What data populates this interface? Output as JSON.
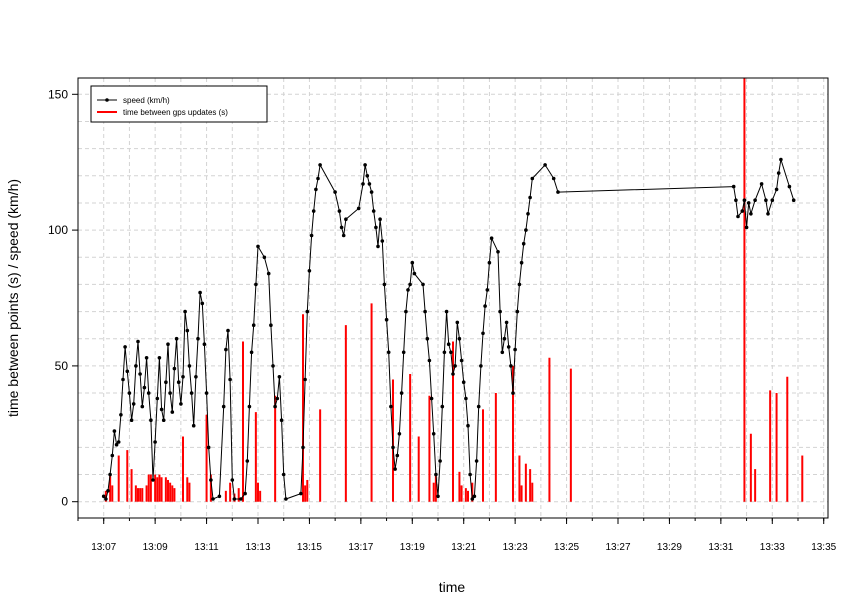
{
  "chart_data": {
    "type": "line",
    "title": "",
    "xlabel": "time",
    "ylabel": "time between points (s) / speed (km/h)",
    "xlim": [
      "13:06:00",
      "13:35:10"
    ],
    "ylim": [
      -6,
      156
    ],
    "x_ticks": [
      "13:07",
      "13:09",
      "13:11",
      "13:13",
      "13:15",
      "13:17",
      "13:19",
      "13:21",
      "13:23",
      "13:25",
      "13:27",
      "13:29",
      "13:31",
      "13:33",
      "13:35"
    ],
    "y_ticks": [
      0,
      50,
      100,
      150
    ],
    "grid": true,
    "legend_position": "top-left",
    "series": [
      {
        "name": "speed (km/h)",
        "color": "#000000",
        "style": "line-with-points",
        "points": [
          [
            "13:07:00",
            2
          ],
          [
            "13:07:05",
            1
          ],
          [
            "13:07:10",
            4
          ],
          [
            "13:07:15",
            10
          ],
          [
            "13:07:20",
            17
          ],
          [
            "13:07:25",
            26
          ],
          [
            "13:07:30",
            21
          ],
          [
            "13:07:35",
            22
          ],
          [
            "13:07:40",
            32
          ],
          [
            "13:07:45",
            45
          ],
          [
            "13:07:50",
            57
          ],
          [
            "13:07:55",
            48
          ],
          [
            "13:08:00",
            40
          ],
          [
            "13:08:05",
            30
          ],
          [
            "13:08:10",
            36
          ],
          [
            "13:08:15",
            50
          ],
          [
            "13:08:20",
            59
          ],
          [
            "13:08:25",
            47
          ],
          [
            "13:08:30",
            35
          ],
          [
            "13:08:35",
            42
          ],
          [
            "13:08:40",
            53
          ],
          [
            "13:08:45",
            40
          ],
          [
            "13:08:50",
            30
          ],
          [
            "13:08:55",
            8
          ],
          [
            "13:09:00",
            22
          ],
          [
            "13:09:05",
            38
          ],
          [
            "13:09:10",
            53
          ],
          [
            "13:09:15",
            34
          ],
          [
            "13:09:20",
            30
          ],
          [
            "13:09:25",
            44
          ],
          [
            "13:09:30",
            58
          ],
          [
            "13:09:35",
            40
          ],
          [
            "13:09:40",
            33
          ],
          [
            "13:09:45",
            49
          ],
          [
            "13:09:50",
            60
          ],
          [
            "13:09:55",
            44
          ],
          [
            "13:10:00",
            36
          ],
          [
            "13:10:05",
            46
          ],
          [
            "13:10:10",
            70
          ],
          [
            "13:10:15",
            63
          ],
          [
            "13:10:20",
            50
          ],
          [
            "13:10:25",
            40
          ],
          [
            "13:10:30",
            28
          ],
          [
            "13:10:35",
            46
          ],
          [
            "13:10:40",
            60
          ],
          [
            "13:10:45",
            77
          ],
          [
            "13:10:50",
            73
          ],
          [
            "13:10:55",
            58
          ],
          [
            "13:11:00",
            40
          ],
          [
            "13:11:05",
            20
          ],
          [
            "13:11:10",
            8
          ],
          [
            "13:11:15",
            1
          ],
          [
            "13:11:30",
            2
          ],
          [
            "13:11:40",
            35
          ],
          [
            "13:11:45",
            56
          ],
          [
            "13:11:50",
            63
          ],
          [
            "13:11:55",
            45
          ],
          [
            "13:12:00",
            8
          ],
          [
            "13:12:05",
            1
          ],
          [
            "13:12:20",
            1
          ],
          [
            "13:12:30",
            3
          ],
          [
            "13:12:35",
            15
          ],
          [
            "13:12:40",
            35
          ],
          [
            "13:12:45",
            55
          ],
          [
            "13:12:50",
            65
          ],
          [
            "13:12:55",
            80
          ],
          [
            "13:13:00",
            94
          ],
          [
            "13:13:15",
            90
          ],
          [
            "13:13:25",
            84
          ],
          [
            "13:13:30",
            65
          ],
          [
            "13:13:35",
            50
          ],
          [
            "13:13:40",
            35
          ],
          [
            "13:13:45",
            38
          ],
          [
            "13:13:50",
            46
          ],
          [
            "13:13:55",
            30
          ],
          [
            "13:14:00",
            10
          ],
          [
            "13:14:05",
            1
          ],
          [
            "13:14:40",
            3
          ],
          [
            "13:14:45",
            20
          ],
          [
            "13:14:50",
            45
          ],
          [
            "13:14:55",
            70
          ],
          [
            "13:15:00",
            85
          ],
          [
            "13:15:05",
            98
          ],
          [
            "13:15:10",
            107
          ],
          [
            "13:15:15",
            115
          ],
          [
            "13:15:20",
            119
          ],
          [
            "13:15:25",
            124
          ],
          [
            "13:16:00",
            114
          ],
          [
            "13:16:10",
            107
          ],
          [
            "13:16:15",
            101
          ],
          [
            "13:16:20",
            98
          ],
          [
            "13:16:25",
            104
          ],
          [
            "13:16:55",
            108
          ],
          [
            "13:17:05",
            117
          ],
          [
            "13:17:10",
            124
          ],
          [
            "13:17:15",
            120
          ],
          [
            "13:17:20",
            117
          ],
          [
            "13:17:25",
            114
          ],
          [
            "13:17:30",
            107
          ],
          [
            "13:17:35",
            101
          ],
          [
            "13:17:40",
            94
          ],
          [
            "13:17:45",
            104
          ],
          [
            "13:17:50",
            96
          ],
          [
            "13:17:55",
            80
          ],
          [
            "13:18:00",
            67
          ],
          [
            "13:18:05",
            55
          ],
          [
            "13:18:10",
            35
          ],
          [
            "13:18:15",
            20
          ],
          [
            "13:18:20",
            12
          ],
          [
            "13:18:25",
            17
          ],
          [
            "13:18:30",
            25
          ],
          [
            "13:18:35",
            40
          ],
          [
            "13:18:40",
            55
          ],
          [
            "13:18:45",
            70
          ],
          [
            "13:18:50",
            78
          ],
          [
            "13:18:55",
            80
          ],
          [
            "13:19:00",
            88
          ],
          [
            "13:19:05",
            84
          ],
          [
            "13:19:25",
            80
          ],
          [
            "13:19:30",
            70
          ],
          [
            "13:19:35",
            60
          ],
          [
            "13:19:40",
            52
          ],
          [
            "13:19:45",
            38
          ],
          [
            "13:19:50",
            25
          ],
          [
            "13:19:55",
            10
          ],
          [
            "13:20:00",
            2
          ],
          [
            "13:20:05",
            15
          ],
          [
            "13:20:10",
            35
          ],
          [
            "13:20:15",
            55
          ],
          [
            "13:20:20",
            70
          ],
          [
            "13:20:25",
            58
          ],
          [
            "13:20:30",
            55
          ],
          [
            "13:20:35",
            47
          ],
          [
            "13:20:40",
            50
          ],
          [
            "13:20:45",
            66
          ],
          [
            "13:20:50",
            60
          ],
          [
            "13:20:55",
            52
          ],
          [
            "13:21:00",
            44
          ],
          [
            "13:21:05",
            38
          ],
          [
            "13:21:10",
            28
          ],
          [
            "13:21:15",
            10
          ],
          [
            "13:21:20",
            1
          ],
          [
            "13:21:25",
            2
          ],
          [
            "13:21:30",
            15
          ],
          [
            "13:21:35",
            35
          ],
          [
            "13:21:40",
            50
          ],
          [
            "13:21:45",
            62
          ],
          [
            "13:21:50",
            72
          ],
          [
            "13:21:55",
            78
          ],
          [
            "13:22:00",
            88
          ],
          [
            "13:22:05",
            97
          ],
          [
            "13:22:20",
            92
          ],
          [
            "13:22:25",
            70
          ],
          [
            "13:22:30",
            55
          ],
          [
            "13:22:35",
            60
          ],
          [
            "13:22:40",
            66
          ],
          [
            "13:22:45",
            57
          ],
          [
            "13:22:50",
            50
          ],
          [
            "13:22:55",
            40
          ],
          [
            "13:23:00",
            56
          ],
          [
            "13:23:05",
            70
          ],
          [
            "13:23:10",
            80
          ],
          [
            "13:23:15",
            88
          ],
          [
            "13:23:20",
            95
          ],
          [
            "13:23:25",
            100
          ],
          [
            "13:23:30",
            106
          ],
          [
            "13:23:35",
            112
          ],
          [
            "13:23:40",
            119
          ],
          [
            "13:24:10",
            124
          ],
          [
            "13:24:30",
            119
          ],
          [
            "13:24:40",
            114
          ],
          [
            "13:31:30",
            116
          ],
          [
            "13:31:35",
            111
          ],
          [
            "13:31:40",
            105
          ],
          [
            "13:31:50",
            107
          ],
          [
            "13:31:55",
            111
          ],
          [
            "13:32:00",
            101
          ],
          [
            "13:32:05",
            110
          ],
          [
            "13:32:10",
            106
          ],
          [
            "13:32:20",
            111
          ],
          [
            "13:32:35",
            117
          ],
          [
            "13:32:45",
            111
          ],
          [
            "13:32:50",
            106
          ],
          [
            "13:33:00",
            111
          ],
          [
            "13:33:10",
            115
          ],
          [
            "13:33:15",
            121
          ],
          [
            "13:33:20",
            126
          ],
          [
            "13:33:40",
            116
          ],
          [
            "13:33:50",
            111
          ]
        ]
      },
      {
        "name": "time between gps updates (s)",
        "color": "#ff0000",
        "style": "vertical-bars",
        "points": [
          [
            "13:07:05",
            4
          ],
          [
            "13:07:15",
            10
          ],
          [
            "13:07:20",
            6
          ],
          [
            "13:07:35",
            17
          ],
          [
            "13:07:55",
            19
          ],
          [
            "13:08:05",
            12
          ],
          [
            "13:08:15",
            6
          ],
          [
            "13:08:20",
            5
          ],
          [
            "13:08:25",
            5
          ],
          [
            "13:08:30",
            5
          ],
          [
            "13:08:40",
            6
          ],
          [
            "13:08:45",
            10
          ],
          [
            "13:08:50",
            10
          ],
          [
            "13:09:00",
            10
          ],
          [
            "13:09:05",
            9
          ],
          [
            "13:09:10",
            10
          ],
          [
            "13:09:15",
            9
          ],
          [
            "13:09:25",
            9
          ],
          [
            "13:09:30",
            8
          ],
          [
            "13:09:35",
            7
          ],
          [
            "13:09:40",
            6
          ],
          [
            "13:09:45",
            5
          ],
          [
            "13:10:05",
            24
          ],
          [
            "13:10:15",
            9
          ],
          [
            "13:10:20",
            7
          ],
          [
            "13:11:00",
            32
          ],
          [
            "13:11:10",
            10
          ],
          [
            "13:11:45",
            4
          ],
          [
            "13:11:55",
            7
          ],
          [
            "13:12:05",
            3
          ],
          [
            "13:12:15",
            5
          ],
          [
            "13:12:25",
            59
          ],
          [
            "13:12:55",
            33
          ],
          [
            "13:13:00",
            7
          ],
          [
            "13:13:05",
            4
          ],
          [
            "13:13:40",
            39
          ],
          [
            "13:14:45",
            69
          ],
          [
            "13:14:50",
            6
          ],
          [
            "13:14:55",
            8
          ],
          [
            "13:15:25",
            34
          ],
          [
            "13:16:25",
            65
          ],
          [
            "13:17:25",
            73
          ],
          [
            "13:18:15",
            45
          ],
          [
            "13:18:55",
            47
          ],
          [
            "13:19:15",
            24
          ],
          [
            "13:19:40",
            39
          ],
          [
            "13:19:50",
            7
          ],
          [
            "13:19:55",
            10
          ],
          [
            "13:20:35",
            59
          ],
          [
            "13:20:50",
            11
          ],
          [
            "13:20:55",
            6
          ],
          [
            "13:21:05",
            5
          ],
          [
            "13:21:10",
            4
          ],
          [
            "13:21:20",
            7
          ],
          [
            "13:21:45",
            34
          ],
          [
            "13:22:15",
            40
          ],
          [
            "13:22:55",
            50
          ],
          [
            "13:23:10",
            17
          ],
          [
            "13:23:15",
            6
          ],
          [
            "13:23:25",
            14
          ],
          [
            "13:23:35",
            12
          ],
          [
            "13:23:40",
            7
          ],
          [
            "13:24:20",
            53
          ],
          [
            "13:25:10",
            49
          ],
          [
            "13:31:55",
            156
          ],
          [
            "13:32:10",
            25
          ],
          [
            "13:32:20",
            12
          ],
          [
            "13:32:55",
            41
          ],
          [
            "13:33:10",
            40
          ],
          [
            "13:33:35",
            46
          ],
          [
            "13:34:10",
            17
          ]
        ]
      }
    ]
  }
}
